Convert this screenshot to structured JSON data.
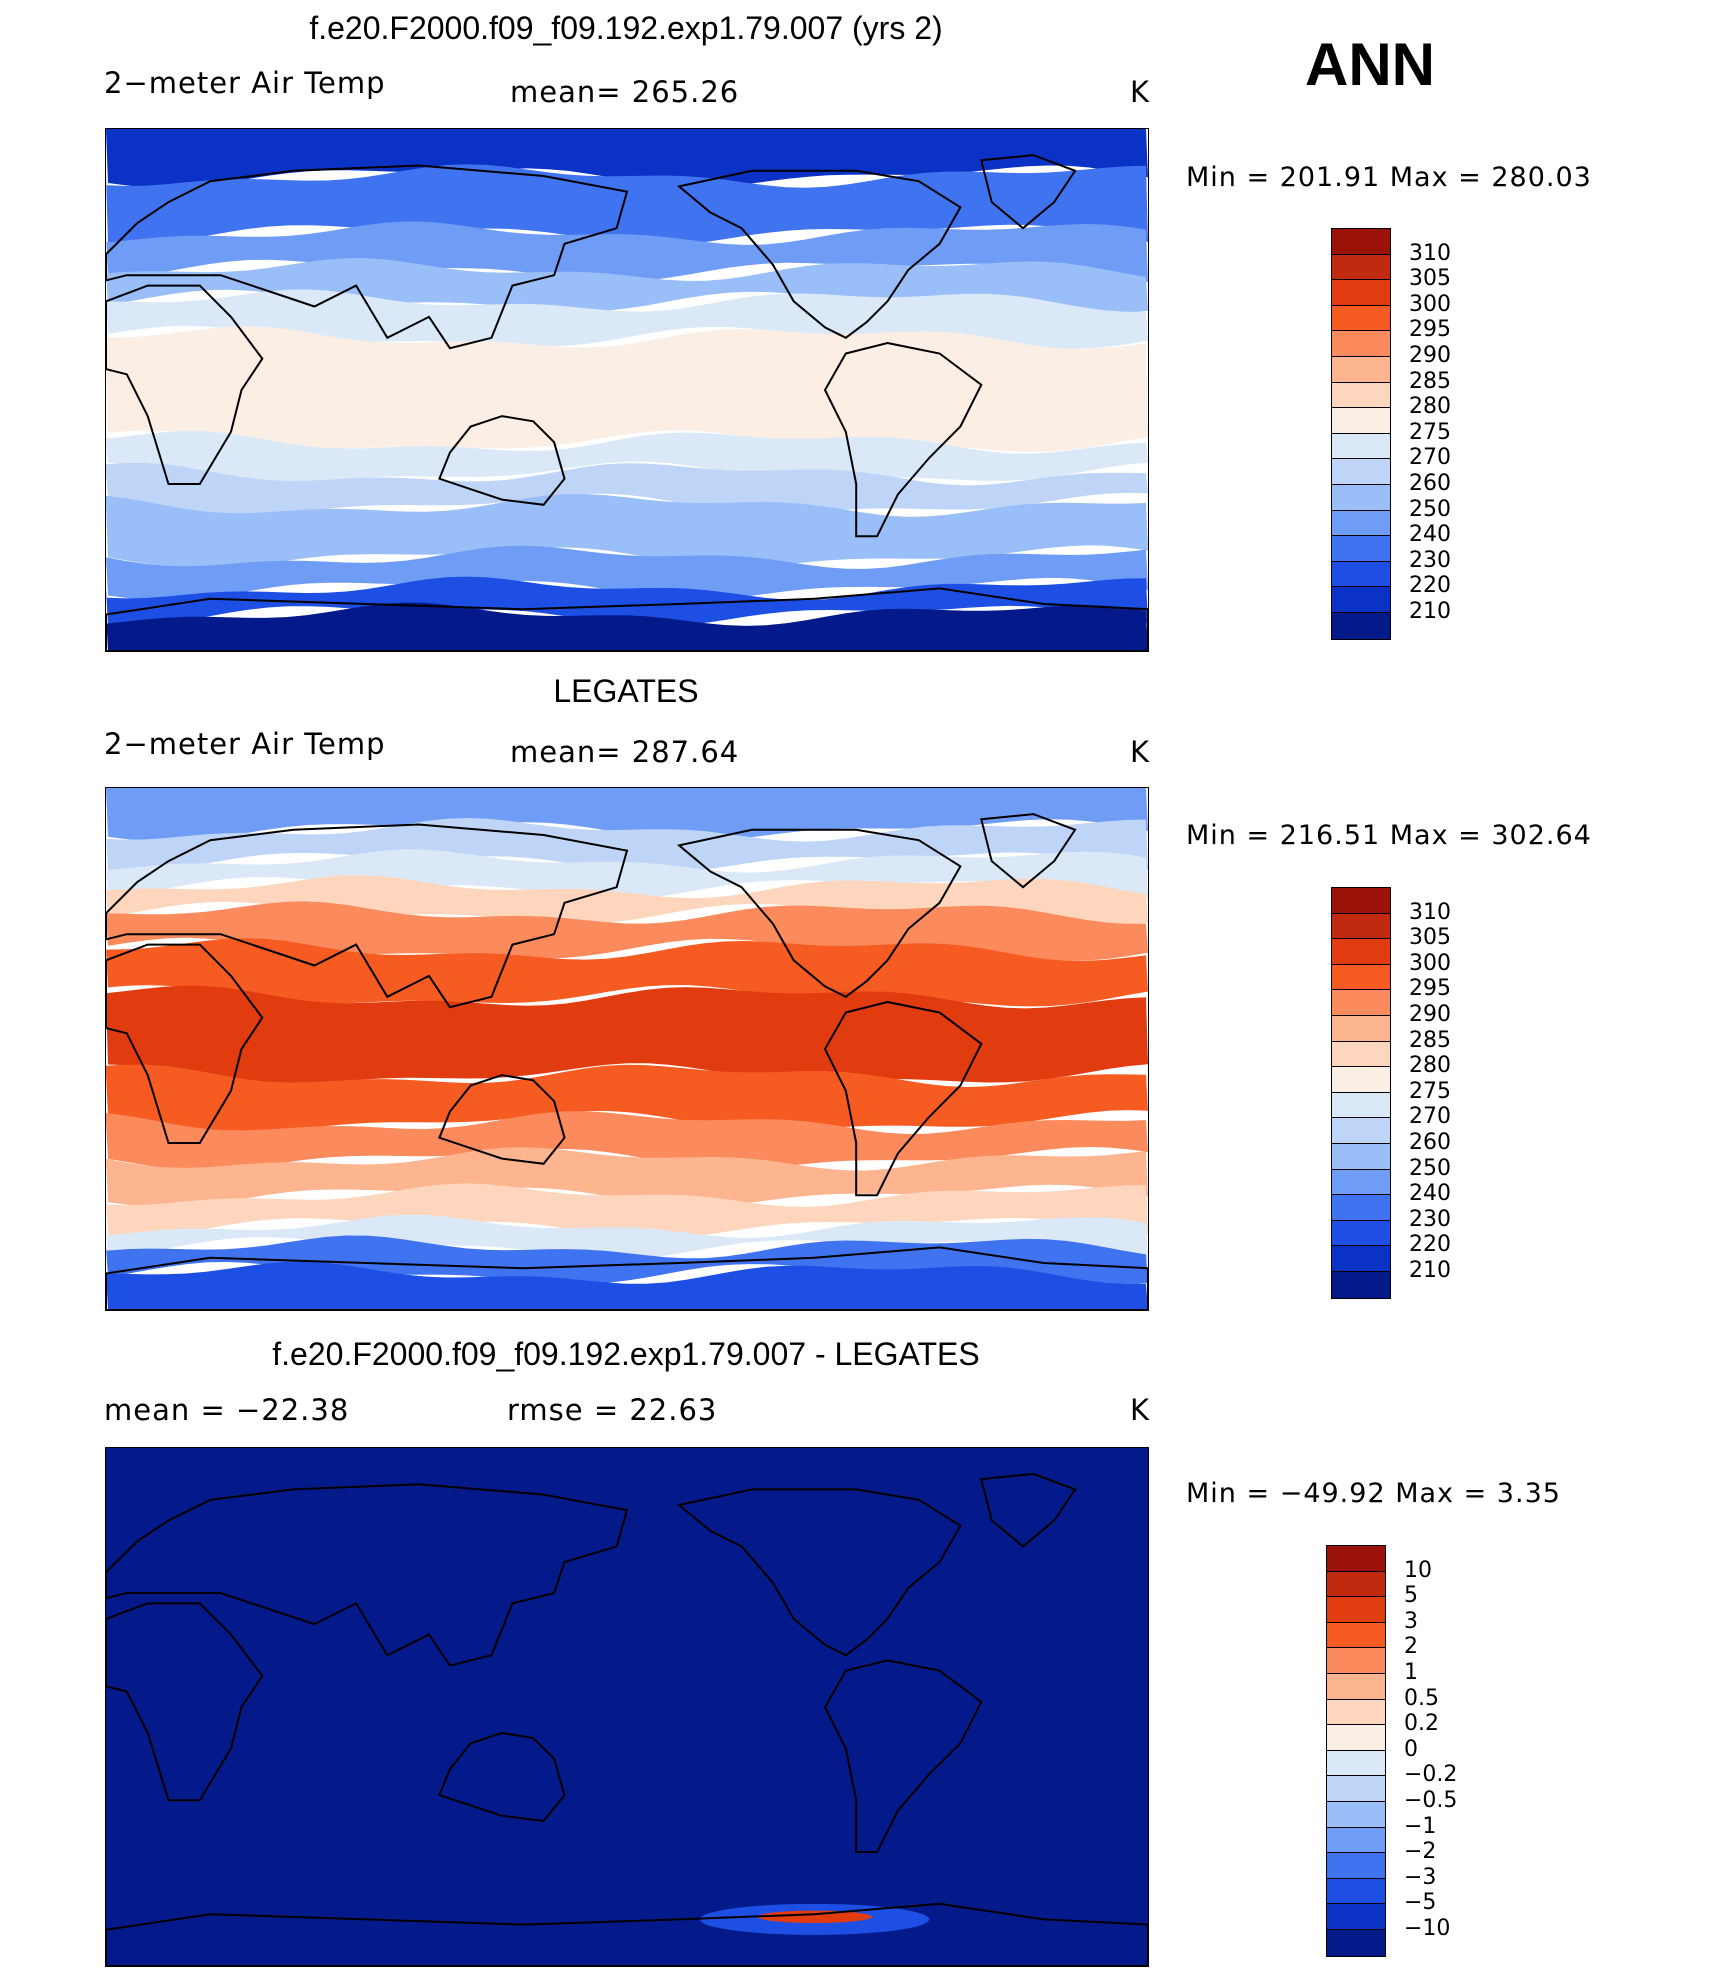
{
  "season": "ANN",
  "panels": [
    {
      "title": "f.e20.F2000.f09_f09.192.exp1.79.007 (yrs 2)",
      "left_label": "2−meter Air Temp",
      "mid_label": "mean=  265.26",
      "units": "K",
      "minmax": "Min  =  201.91  Max  =  280.03",
      "colorbar_labels": [
        "310",
        "305",
        "300",
        "295",
        "290",
        "285",
        "280",
        "275",
        "270",
        "260",
        "250",
        "240",
        "230",
        "220",
        "210"
      ],
      "colorbar_colors": [
        "#9a1208",
        "#c02a0e",
        "#e13b10",
        "#f65b22",
        "#fb8a5c",
        "#fdb590",
        "#fdd6bd",
        "#fbeee4",
        "#dbe8f8",
        "#bfd5f8",
        "#9abff8",
        "#6f9df6",
        "#3f73f0",
        "#1d4fe4",
        "#0a32c4",
        "#051a8a"
      ],
      "field": "model"
    },
    {
      "title": "LEGATES",
      "left_label": "2−meter Air Temp",
      "mid_label": "mean=  287.64",
      "units": "K",
      "minmax": "Min  =  216.51  Max  =  302.64",
      "colorbar_labels": [
        "310",
        "305",
        "300",
        "295",
        "290",
        "285",
        "280",
        "275",
        "270",
        "260",
        "250",
        "240",
        "230",
        "220",
        "210"
      ],
      "colorbar_colors": [
        "#9a1208",
        "#c02a0e",
        "#e13b10",
        "#f65b22",
        "#fb8a5c",
        "#fdb590",
        "#fdd6bd",
        "#fbeee4",
        "#dbe8f8",
        "#bfd5f8",
        "#9abff8",
        "#6f9df6",
        "#3f73f0",
        "#1d4fe4",
        "#0a32c4",
        "#051a8a"
      ],
      "field": "obs"
    },
    {
      "title": "f.e20.F2000.f09_f09.192.exp1.79.007 - LEGATES",
      "left_label": "mean  =  −22.38",
      "mid_label": "rmse  =    22.63",
      "units": "K",
      "minmax": "Min  =  −49.92  Max  =      3.35",
      "colorbar_labels": [
        "10",
        "5",
        "3",
        "2",
        "1",
        "0.5",
        "0.2",
        "0",
        "−0.2",
        "−0.5",
        "−1",
        "−2",
        "−3",
        "−5",
        "−10"
      ],
      "colorbar_colors": [
        "#9a1208",
        "#c02a0e",
        "#e13b10",
        "#f65b22",
        "#fb8a5c",
        "#fdb590",
        "#fdd6bd",
        "#fbeee4",
        "#dbe8f8",
        "#bfd5f8",
        "#9abff8",
        "#6f9df6",
        "#3f73f0",
        "#1d4fe4",
        "#0a32c4",
        "#051a8a"
      ],
      "field": "diff"
    }
  ]
}
